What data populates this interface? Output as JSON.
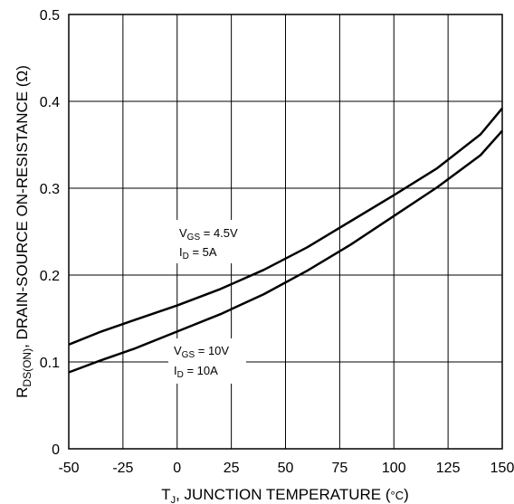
{
  "chart_data": {
    "type": "line",
    "x_ticks": [
      "-50",
      "-25",
      "0",
      "25",
      "50",
      "75",
      "100",
      "125",
      "150"
    ],
    "y_ticks": [
      "0",
      "0.1",
      "0.2",
      "0.3",
      "0.4",
      "0.5"
    ],
    "xlim": [
      -50,
      150
    ],
    "ylim": [
      0,
      0.5
    ],
    "grid": true,
    "xlabel": {
      "main": "T",
      "sub": "J",
      "rest": ", JUNCTION TEMPERATURE (",
      "unit": "°C",
      "close": ")"
    },
    "ylabel": {
      "main": "R",
      "sub": "DS(ON)",
      "rest": ", DRAIN-SOURCE ON-RESISTANCE (Ω)"
    },
    "series": [
      {
        "x": [
          -50,
          -35,
          -20,
          0,
          20,
          40,
          60,
          80,
          100,
          120,
          140,
          150
        ],
        "y": [
          0.12,
          0.135,
          0.148,
          0.165,
          0.184,
          0.206,
          0.232,
          0.262,
          0.292,
          0.323,
          0.362,
          0.392
        ],
        "color": "#000000"
      },
      {
        "x": [
          -50,
          -35,
          -20,
          0,
          20,
          40,
          60,
          80,
          100,
          120,
          140,
          150
        ],
        "y": [
          0.088,
          0.102,
          0.115,
          0.135,
          0.155,
          0.178,
          0.205,
          0.235,
          0.268,
          0.301,
          0.338,
          0.366
        ],
        "color": "#000000"
      }
    ],
    "annotations": [
      {
        "line1_main": "V",
        "line1_sub": "GS",
        "line1_rest": " = 4.5V",
        "line2_main": "I",
        "line2_sub": "D",
        "line2_rest": " = 5A"
      },
      {
        "line1_main": "V",
        "line1_sub": "GS",
        "line1_rest": " = 10V",
        "line2_main": "I",
        "line2_sub": "D",
        "line2_rest": " = 10A"
      }
    ]
  }
}
